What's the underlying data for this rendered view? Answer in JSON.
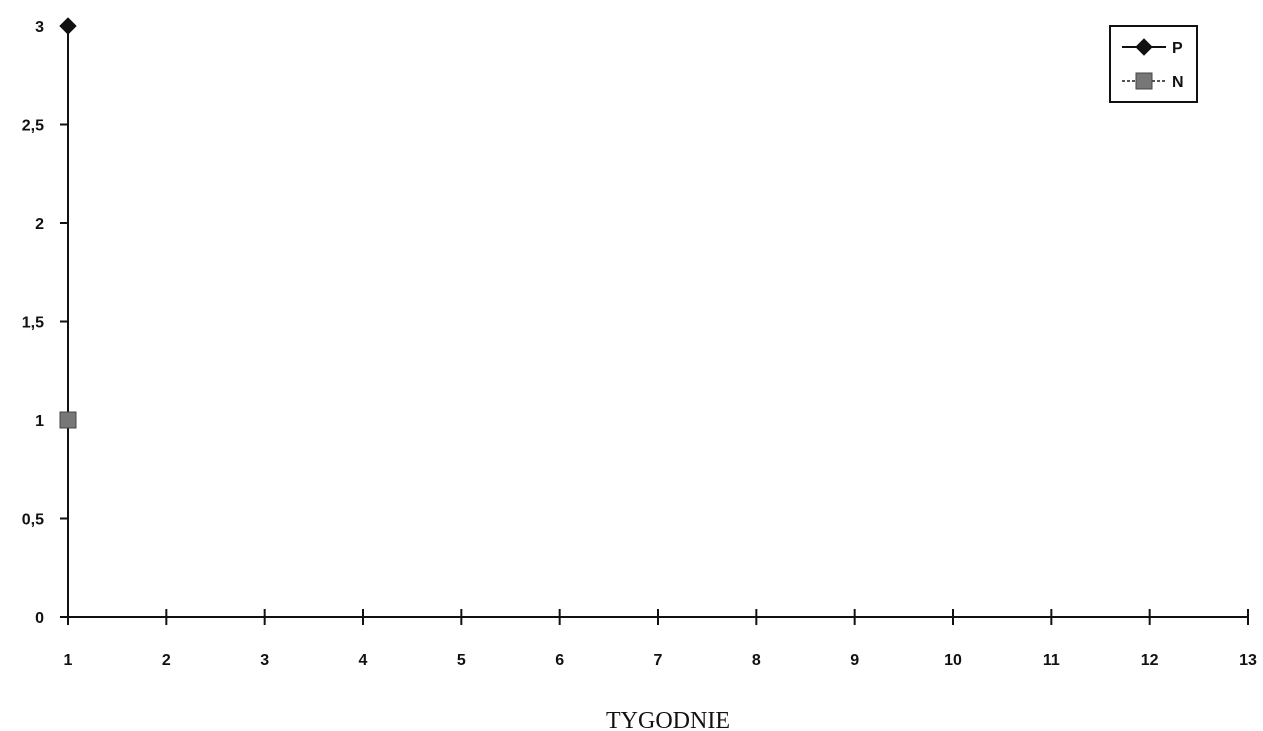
{
  "chart_data": {
    "type": "line",
    "xlabel": "TYGODNIE",
    "ylabel": "",
    "x": [
      1,
      2,
      3,
      4,
      5,
      6,
      7,
      8,
      9,
      10,
      11,
      12,
      13
    ],
    "x_tick_labels": [
      "1",
      "2",
      "3",
      "4",
      "5",
      "6",
      "7",
      "8",
      "9",
      "10",
      "11",
      "12",
      "13"
    ],
    "xlim": [
      1,
      13
    ],
    "ylim": [
      0,
      3
    ],
    "y_ticks": [
      0,
      0.5,
      1,
      1.5,
      2,
      2.5,
      3
    ],
    "y_tick_labels": [
      "0",
      "0,5",
      "1",
      "1,5",
      "2",
      "2,5",
      "3"
    ],
    "grid": false,
    "legend_position": "top-right",
    "series": [
      {
        "name": "P",
        "marker": "diamond",
        "color": "#111111",
        "points": [
          {
            "x": 1,
            "y": 3
          }
        ]
      },
      {
        "name": "N",
        "marker": "square",
        "color": "#777777",
        "points": [
          {
            "x": 1,
            "y": 1
          }
        ]
      }
    ]
  }
}
